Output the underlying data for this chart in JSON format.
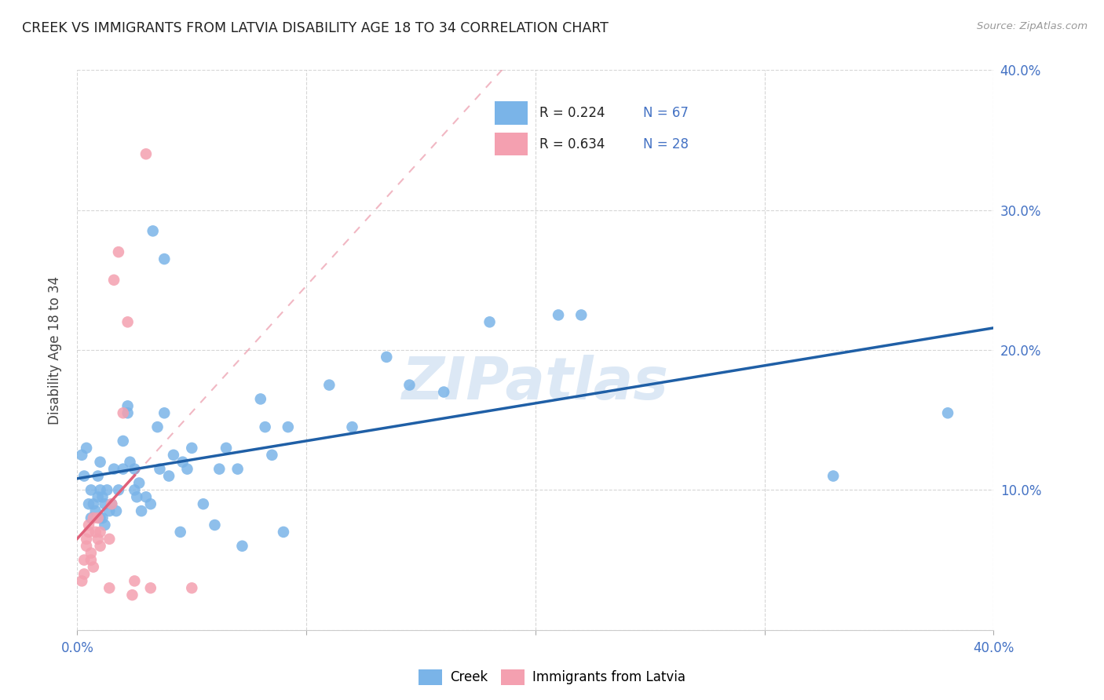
{
  "title": "CREEK VS IMMIGRANTS FROM LATVIA DISABILITY AGE 18 TO 34 CORRELATION CHART",
  "source": "Source: ZipAtlas.com",
  "ylabel": "Disability Age 18 to 34",
  "xlim": [
    0.0,
    0.4
  ],
  "ylim": [
    0.0,
    0.4
  ],
  "xticks": [
    0.0,
    0.1,
    0.2,
    0.3,
    0.4
  ],
  "yticks": [
    0.1,
    0.2,
    0.3,
    0.4
  ],
  "xticklabels_bottom": [
    "0.0%",
    "",
    "",
    "",
    "40.0%"
  ],
  "yticklabels_right": [
    "10.0%",
    "20.0%",
    "30.0%",
    "40.0%"
  ],
  "creek_color": "#7ab4e8",
  "latvia_color": "#f4a0b0",
  "creek_line_color": "#1f5fa6",
  "latvia_line_color": "#e0607a",
  "creek_scatter": [
    [
      0.002,
      0.125
    ],
    [
      0.003,
      0.11
    ],
    [
      0.004,
      0.13
    ],
    [
      0.005,
      0.09
    ],
    [
      0.006,
      0.08
    ],
    [
      0.006,
      0.1
    ],
    [
      0.007,
      0.09
    ],
    [
      0.008,
      0.085
    ],
    [
      0.009,
      0.095
    ],
    [
      0.009,
      0.11
    ],
    [
      0.01,
      0.08
    ],
    [
      0.01,
      0.1
    ],
    [
      0.01,
      0.12
    ],
    [
      0.011,
      0.08
    ],
    [
      0.011,
      0.095
    ],
    [
      0.012,
      0.075
    ],
    [
      0.012,
      0.09
    ],
    [
      0.013,
      0.1
    ],
    [
      0.014,
      0.085
    ],
    [
      0.015,
      0.09
    ],
    [
      0.016,
      0.115
    ],
    [
      0.017,
      0.085
    ],
    [
      0.018,
      0.1
    ],
    [
      0.02,
      0.115
    ],
    [
      0.02,
      0.135
    ],
    [
      0.022,
      0.16
    ],
    [
      0.022,
      0.155
    ],
    [
      0.023,
      0.12
    ],
    [
      0.025,
      0.1
    ],
    [
      0.025,
      0.115
    ],
    [
      0.026,
      0.095
    ],
    [
      0.027,
      0.105
    ],
    [
      0.028,
      0.085
    ],
    [
      0.03,
      0.095
    ],
    [
      0.032,
      0.09
    ],
    [
      0.033,
      0.285
    ],
    [
      0.035,
      0.145
    ],
    [
      0.036,
      0.115
    ],
    [
      0.038,
      0.265
    ],
    [
      0.038,
      0.155
    ],
    [
      0.04,
      0.11
    ],
    [
      0.042,
      0.125
    ],
    [
      0.045,
      0.07
    ],
    [
      0.046,
      0.12
    ],
    [
      0.048,
      0.115
    ],
    [
      0.05,
      0.13
    ],
    [
      0.055,
      0.09
    ],
    [
      0.06,
      0.075
    ],
    [
      0.062,
      0.115
    ],
    [
      0.065,
      0.13
    ],
    [
      0.07,
      0.115
    ],
    [
      0.072,
      0.06
    ],
    [
      0.08,
      0.165
    ],
    [
      0.082,
      0.145
    ],
    [
      0.085,
      0.125
    ],
    [
      0.09,
      0.07
    ],
    [
      0.092,
      0.145
    ],
    [
      0.11,
      0.175
    ],
    [
      0.12,
      0.145
    ],
    [
      0.135,
      0.195
    ],
    [
      0.145,
      0.175
    ],
    [
      0.16,
      0.17
    ],
    [
      0.18,
      0.22
    ],
    [
      0.21,
      0.225
    ],
    [
      0.22,
      0.225
    ],
    [
      0.33,
      0.11
    ],
    [
      0.38,
      0.155
    ]
  ],
  "latvia_scatter": [
    [
      0.002,
      0.035
    ],
    [
      0.003,
      0.04
    ],
    [
      0.003,
      0.05
    ],
    [
      0.004,
      0.06
    ],
    [
      0.004,
      0.065
    ],
    [
      0.005,
      0.07
    ],
    [
      0.005,
      0.075
    ],
    [
      0.006,
      0.055
    ],
    [
      0.006,
      0.05
    ],
    [
      0.007,
      0.045
    ],
    [
      0.007,
      0.08
    ],
    [
      0.008,
      0.07
    ],
    [
      0.009,
      0.065
    ],
    [
      0.009,
      0.08
    ],
    [
      0.01,
      0.06
    ],
    [
      0.01,
      0.07
    ],
    [
      0.014,
      0.065
    ],
    [
      0.014,
      0.03
    ],
    [
      0.015,
      0.09
    ],
    [
      0.016,
      0.25
    ],
    [
      0.018,
      0.27
    ],
    [
      0.02,
      0.155
    ],
    [
      0.022,
      0.22
    ],
    [
      0.024,
      0.025
    ],
    [
      0.025,
      0.035
    ],
    [
      0.03,
      0.34
    ],
    [
      0.032,
      0.03
    ],
    [
      0.05,
      0.03
    ]
  ],
  "background_color": "#ffffff",
  "grid_color": "#cccccc",
  "tick_color": "#4472c4",
  "watermark": "ZIPatlas",
  "watermark_color": "#dce8f5"
}
